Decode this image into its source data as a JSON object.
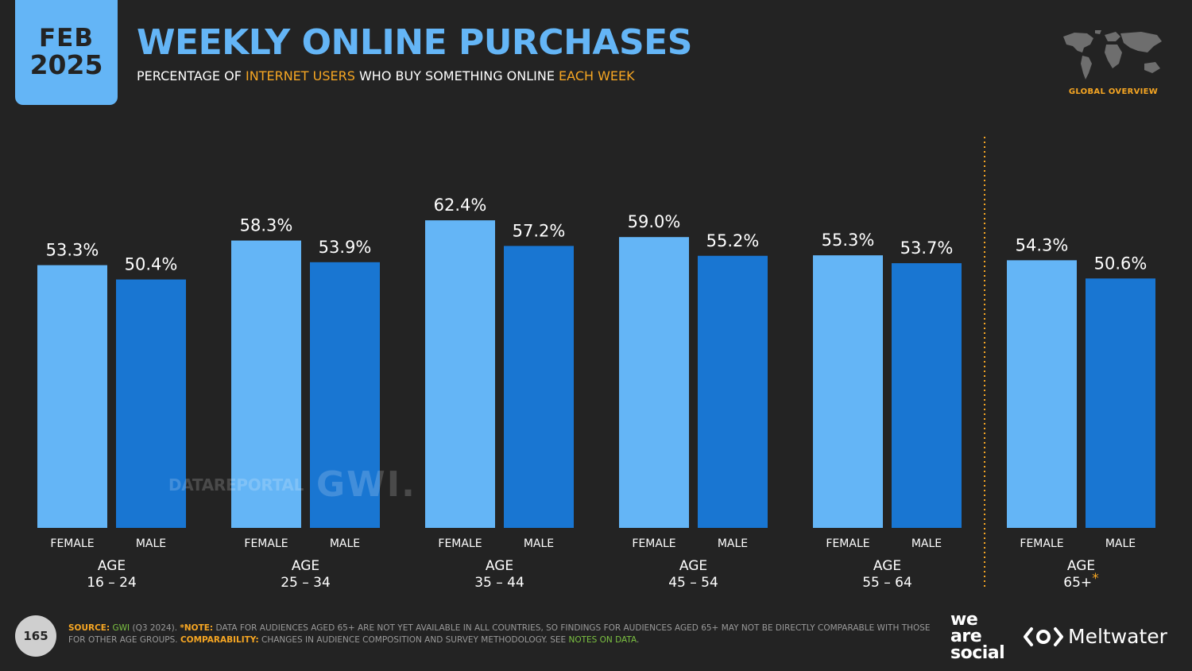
{
  "header": {
    "month": "FEB",
    "year": "2025",
    "title": "WEEKLY ONLINE PURCHASES",
    "subtitle_1": "PERCENTAGE OF ",
    "subtitle_2": "INTERNET USERS",
    "subtitle_3": " WHO BUY SOMETHING ONLINE ",
    "subtitle_4": "EACH WEEK",
    "global_label": "GLOBAL OVERVIEW",
    "map_icon": "world-map-icon"
  },
  "colors": {
    "background": "#232323",
    "female": "#64b5f6",
    "male": "#1976d2",
    "accent": "#f6a623",
    "divider": "#f6a623"
  },
  "chart_data": {
    "type": "bar",
    "categories": [
      "AGE 16 – 24",
      "AGE 25 – 34",
      "AGE 35 – 44",
      "AGE 45 – 54",
      "AGE 55 – 64",
      "AGE 65+*"
    ],
    "age_lines": [
      [
        "AGE",
        "16 – 24"
      ],
      [
        "AGE",
        "25 – 34"
      ],
      [
        "AGE",
        "35 – 44"
      ],
      [
        "AGE",
        "45 – 54"
      ],
      [
        "AGE",
        "55 – 64"
      ],
      [
        "AGE",
        "65+"
      ]
    ],
    "age_footnote_mark": "*",
    "series": [
      {
        "name": "FEMALE",
        "values": [
          53.3,
          58.3,
          62.4,
          59.0,
          55.3,
          54.3
        ]
      },
      {
        "name": "MALE",
        "values": [
          50.4,
          53.9,
          57.2,
          55.2,
          53.7,
          50.6
        ]
      }
    ],
    "value_labels": [
      [
        "53.3%",
        "50.4%"
      ],
      [
        "58.3%",
        "53.9%"
      ],
      [
        "62.4%",
        "57.2%"
      ],
      [
        "59.0%",
        "55.2%"
      ],
      [
        "55.3%",
        "53.7%"
      ],
      [
        "54.3%",
        "50.6%"
      ]
    ],
    "unit": "%",
    "ylim": [
      0,
      70
    ],
    "grid": false,
    "divider_before_group": 5
  },
  "watermark": {
    "datareportal": "DATAREPORTAL",
    "gwi": "GWI."
  },
  "footer": {
    "page_number": "165",
    "source_label": "SOURCE:",
    "source_link": "GWI",
    "source_text": " (Q3 2024). ",
    "note_label": "*NOTE:",
    "note_text": " DATA FOR AUDIENCES AGED 65+ ARE NOT YET AVAILABLE IN ALL COUNTRIES, SO FINDINGS FOR AUDIENCES AGED 65+ MAY NOT BE DIRECTLY COMPARABLE WITH THOSE FOR OTHER AGE GROUPS. ",
    "comparability_label": "COMPARABILITY:",
    "comparability_text": " CHANGES IN AUDIENCE COMPOSITION AND SURVEY METHODOLOGY. SEE ",
    "notes_link": "NOTES ON DATA",
    "end": "."
  },
  "brands": {
    "we_are_social": [
      "we",
      "are",
      "social"
    ],
    "meltwater": "Meltwater",
    "meltwater_icon": "meltwater-logo-icon"
  }
}
